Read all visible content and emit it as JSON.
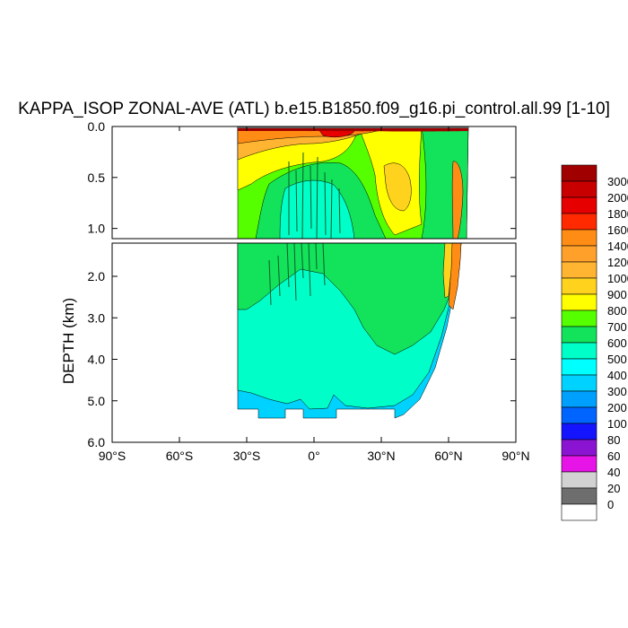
{
  "chart_data": {
    "type": "heatmap",
    "title": "KAPPA_ISOP ZONAL-AVE (ATL) b.e15.B1850.f09_g16.pi_control.all.99 [1-10]",
    "ylabel": "DEPTH (km)",
    "xlabel": "",
    "x_ticks": [
      "90°S",
      "60°S",
      "30°S",
      "0°",
      "30°N",
      "60°N",
      "90°N"
    ],
    "x_tick_values": [
      -90,
      -60,
      -30,
      0,
      30,
      60,
      90
    ],
    "xlim": [
      -90,
      90
    ],
    "upper_panel": {
      "ylim": [
        0.0,
        1.1
      ],
      "y_ticks": [
        "0.0",
        "0.5",
        "1.0"
      ],
      "y_tick_values": [
        0.0,
        0.5,
        1.0
      ]
    },
    "lower_panel": {
      "ylim": [
        1.2,
        6.0
      ],
      "y_ticks": [
        "2.0",
        "3.0",
        "4.0",
        "5.0",
        "6.0"
      ],
      "y_tick_values": [
        2.0,
        3.0,
        4.0,
        5.0,
        6.0
      ]
    },
    "colorbar": {
      "labels": [
        "3000",
        "2000",
        "1800",
        "1600",
        "1400",
        "1200",
        "1000",
        "900",
        "800",
        "700",
        "600",
        "500",
        "400",
        "300",
        "200",
        "100",
        "80",
        "60",
        "40",
        "20",
        "0"
      ],
      "colors": [
        "#a00000",
        "#c80000",
        "#e60000",
        "#ff2a00",
        "#ff8c14",
        "#ffa02a",
        "#ffb432",
        "#ffd21e",
        "#ffff00",
        "#55ff00",
        "#12e35a",
        "#00ffc8",
        "#00ffff",
        "#00d2ff",
        "#00a0ff",
        "#0064ff",
        "#1414ff",
        "#8a14d2",
        "#e614e6",
        "#d2d2d2",
        "#6e6e6e",
        "#ffffff"
      ]
    },
    "fields": {
      "upper": [
        {
          "value": 900,
          "lat": [
            -35,
            25
          ],
          "depth": [
            0.0,
            0.35
          ]
        },
        {
          "value": 1400,
          "lat": [
            -35,
            25
          ],
          "depth": [
            0.0,
            0.12
          ]
        },
        {
          "value": 2000,
          "lat": [
            5,
            20
          ],
          "depth": [
            0.0,
            0.05
          ]
        },
        {
          "value": 900,
          "lat": [
            20,
            55
          ],
          "depth": [
            0.0,
            1.05
          ]
        },
        {
          "value": 700,
          "lat": [
            -35,
            68
          ],
          "depth": [
            0.2,
            1.1
          ]
        },
        {
          "value": 500,
          "lat": [
            -20,
            15
          ],
          "depth": [
            0.5,
            1.1
          ]
        }
      ],
      "lower": [
        {
          "value": 700,
          "lat": [
            -35,
            65
          ],
          "depth": [
            1.2,
            3.0
          ]
        },
        {
          "value": 500,
          "lat": [
            -35,
            60
          ],
          "depth": [
            2.5,
            5.2
          ]
        },
        {
          "value": 300,
          "lat": [
            -35,
            50
          ],
          "depth": [
            4.8,
            5.4
          ]
        },
        {
          "value": 1200,
          "lat": [
            60,
            65
          ],
          "depth": [
            1.2,
            2.6
          ]
        }
      ]
    }
  }
}
